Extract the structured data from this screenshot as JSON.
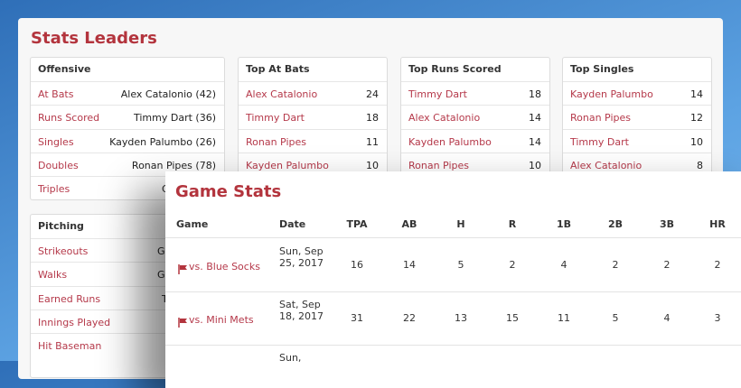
{
  "stats_leaders": {
    "title": "Stats Leaders",
    "boxes": [
      {
        "title": "Offensive",
        "rows": [
          {
            "label": "At Bats",
            "value": "Alex Catalonio (42)"
          },
          {
            "label": "Runs Scored",
            "value": "Timmy Dart (36)"
          },
          {
            "label": "Singles",
            "value": "Kayden Palumbo (26)"
          },
          {
            "label": "Doubles",
            "value": "Ronan Pipes (78)"
          },
          {
            "label": "Triples",
            "value": "Grif"
          }
        ]
      },
      {
        "title": "Pitching",
        "rows": [
          {
            "label": "Strikeouts",
            "value": "Griff"
          },
          {
            "label": "Walks",
            "value": "Griff"
          },
          {
            "label": "Earned Runs",
            "value": "Tim"
          },
          {
            "label": "Innings Played"
          },
          {
            "label": "Hit Baseman"
          }
        ]
      },
      {
        "title": "Top At Bats",
        "rows": [
          {
            "label": "Alex Catalonio",
            "value": 24
          },
          {
            "label": "Timmy Dart",
            "value": 18
          },
          {
            "label": "Ronan Pipes",
            "value": 11
          },
          {
            "label": "Kayden Palumbo",
            "value": 10
          }
        ]
      },
      {
        "title": "Top Runs Scored",
        "rows": [
          {
            "label": "Timmy Dart",
            "value": 18
          },
          {
            "label": "Alex Catalonio",
            "value": 14
          },
          {
            "label": "Kayden Palumbo",
            "value": 14
          },
          {
            "label": "Ronan Pipes",
            "value": 10
          }
        ]
      },
      {
        "title": "Top Singles",
        "rows": [
          {
            "label": "Kayden Palumbo",
            "value": 14
          },
          {
            "label": "Ronan Pipes",
            "value": 12
          },
          {
            "label": "Timmy Dart",
            "value": 10
          },
          {
            "label": "Alex Catalonio",
            "value": 8
          }
        ]
      }
    ]
  },
  "game_stats": {
    "title": "Game Stats",
    "columns": [
      "Game",
      "Date",
      "TPA",
      "AB",
      "H",
      "R",
      "1B",
      "2B",
      "3B",
      "HR"
    ],
    "rows": [
      {
        "game": "vs. Blue Socks",
        "date": "Sun, Sep 25, 2017",
        "stats": [
          16,
          14,
          5,
          2,
          4,
          2,
          2,
          2
        ]
      },
      {
        "game": "vs. Mini Mets",
        "date": "Sat, Sep 18, 2017",
        "stats": [
          31,
          22,
          13,
          15,
          11,
          5,
          4,
          3
        ]
      },
      {
        "date": "Sun,"
      }
    ]
  }
}
